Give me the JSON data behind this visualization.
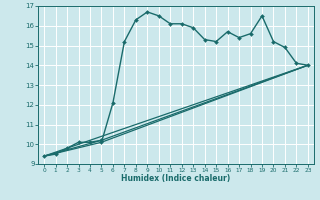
{
  "xlabel": "Humidex (Indice chaleur)",
  "bg_color": "#cce8ec",
  "grid_color": "#ffffff",
  "line_color": "#1a6b6b",
  "xlim": [
    -0.5,
    23.5
  ],
  "ylim": [
    9,
    17
  ],
  "xticks": [
    0,
    1,
    2,
    3,
    4,
    5,
    6,
    7,
    8,
    9,
    10,
    11,
    12,
    13,
    14,
    15,
    16,
    17,
    18,
    19,
    20,
    21,
    22,
    23
  ],
  "yticks": [
    9,
    10,
    11,
    12,
    13,
    14,
    15,
    16,
    17
  ],
  "lines": [
    {
      "x": [
        0,
        1,
        2,
        3,
        4,
        5,
        5,
        6,
        7,
        8,
        9,
        10,
        11,
        12,
        13,
        14,
        15,
        16,
        17,
        18,
        19,
        20,
        21,
        22,
        23
      ],
      "y": [
        9.4,
        9.5,
        9.8,
        10.1,
        10.1,
        10.2,
        10.1,
        12.1,
        15.2,
        16.3,
        16.7,
        16.5,
        16.1,
        16.1,
        15.9,
        15.3,
        15.2,
        15.7,
        15.4,
        15.6,
        16.5,
        15.2,
        14.9,
        14.1,
        14.0
      ],
      "marker": "D",
      "markersize": 2.0,
      "linewidth": 1.0
    },
    {
      "x": [
        0,
        23
      ],
      "y": [
        9.4,
        14.0
      ],
      "marker": null,
      "linewidth": 0.9
    },
    {
      "x": [
        0,
        5,
        23
      ],
      "y": [
        9.4,
        10.1,
        14.0
      ],
      "marker": null,
      "linewidth": 0.9
    },
    {
      "x": [
        0,
        5,
        23
      ],
      "y": [
        9.4,
        10.2,
        14.0
      ],
      "marker": null,
      "linewidth": 0.9
    }
  ]
}
